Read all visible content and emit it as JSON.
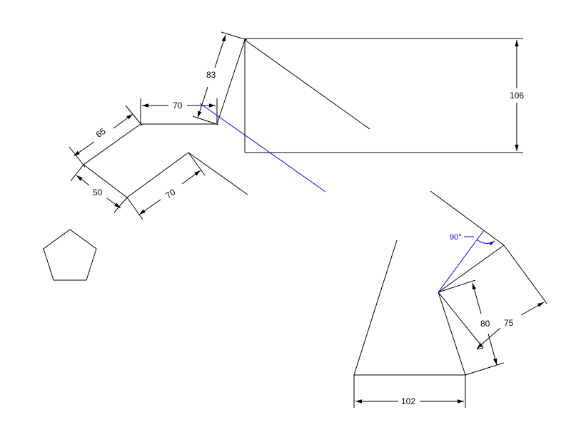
{
  "colors": {
    "line": "#000000",
    "construction": "#0000ff",
    "background": "#ffffff"
  },
  "dimensions": {
    "d83": "83",
    "d70_top": "70",
    "d65": "65",
    "d50": "50",
    "d70_bottom": "70",
    "d106": "106",
    "d90deg": "90°",
    "d80": "80",
    "d75": "75",
    "d102": "102"
  }
}
